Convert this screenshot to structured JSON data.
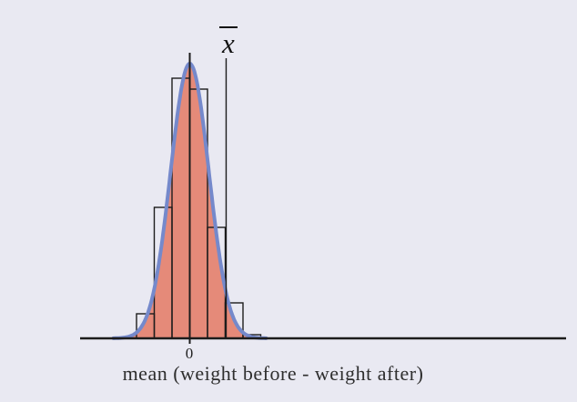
{
  "figure": {
    "background": "#e9e9f2",
    "xbar_label": "x",
    "caption_note": "histogram of sample means with overlaid normal curve"
  },
  "chart_data": {
    "type": "histogram",
    "title": "",
    "xlabel": "mean (weight before - weight after)",
    "ylabel": "",
    "x_tick_labels": [
      "0"
    ],
    "grid": false,
    "legend": false,
    "bins": {
      "left_edges": [
        -3,
        -2,
        -1,
        0,
        1,
        2,
        3
      ],
      "bin_width": 1,
      "heights": [
        27,
        144,
        286,
        274,
        122,
        39,
        4
      ],
      "units": "relative frequency (same arbitrary units as curve peak)"
    },
    "normal_curve": {
      "mean": 0,
      "sd": 1.08,
      "peak": 302,
      "color": "#7589cb"
    },
    "annotations": {
      "zero_line_x": 0,
      "xbar_line_x": 2.05,
      "xbar_label": "x̄"
    },
    "colors": {
      "area_fill": "#e58a79",
      "outline": "#1c1c1c",
      "curve": "#7589cb",
      "text": "#2e2e2e"
    },
    "x_axis_range_units": [
      -6.2,
      21.2
    ]
  }
}
